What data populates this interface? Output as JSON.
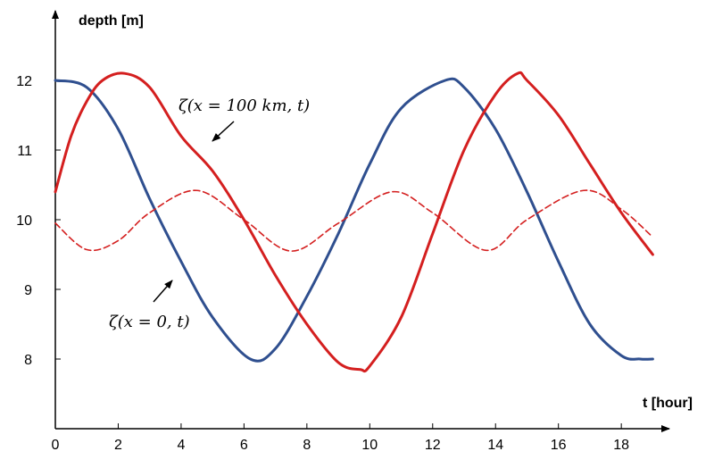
{
  "chart_data": {
    "type": "line",
    "xlabel": "t [hour]",
    "ylabel": "depth [m]",
    "xlim": [
      0,
      19.5
    ],
    "ylim": [
      7.0,
      13.0
    ],
    "x_ticks": [
      0,
      2,
      4,
      6,
      8,
      10,
      12,
      14,
      16,
      18
    ],
    "y_ticks": [
      8,
      9,
      10,
      11,
      12
    ],
    "grid": false,
    "series": [
      {
        "color": "#2f4f8f",
        "style": "solid",
        "x": [
          0,
          1,
          2,
          3,
          4,
          5,
          6.2,
          7,
          8,
          9,
          10,
          11,
          12.4,
          13,
          14,
          15,
          16,
          17,
          18,
          18.6,
          19
        ],
        "y": [
          12.0,
          11.9,
          11.3,
          10.3,
          9.4,
          8.6,
          8.0,
          8.15,
          8.9,
          9.8,
          10.8,
          11.6,
          12.0,
          11.9,
          11.3,
          10.4,
          9.4,
          8.5,
          8.05,
          8.0,
          8.0
        ]
      },
      {
        "color": "#d41f1f",
        "style": "solid",
        "x": [
          0,
          0.5,
          1,
          1.5,
          2.2,
          3,
          4,
          5,
          6,
          7,
          8,
          9,
          9.7,
          10,
          11,
          12,
          13,
          14,
          14.7,
          15,
          16,
          17,
          18,
          19
        ],
        "y": [
          10.4,
          11.2,
          11.7,
          12.0,
          12.1,
          11.9,
          11.2,
          10.7,
          10.0,
          9.2,
          8.5,
          7.95,
          7.85,
          7.9,
          8.6,
          9.8,
          11.0,
          11.8,
          12.1,
          12.0,
          11.5,
          10.8,
          10.1,
          9.5
        ]
      },
      {
        "color": "#d41f1f",
        "style": "dashed",
        "x": [
          0,
          1,
          2,
          3,
          4.5,
          6,
          7.5,
          9,
          10.7,
          12,
          13.7,
          15,
          16.8,
          18,
          19
        ],
        "y": [
          9.95,
          9.57,
          9.7,
          10.1,
          10.42,
          10.0,
          9.55,
          9.95,
          10.4,
          10.1,
          9.56,
          10.0,
          10.42,
          10.15,
          9.75
        ]
      }
    ],
    "annotations": [
      {
        "text": "ζ(x = 100 km, t)",
        "data_x": 9.3,
        "data_y": 11.25
      },
      {
        "text": "ζ(x = 0, t)",
        "data_x": 4.6,
        "data_y": 8.45
      }
    ]
  }
}
